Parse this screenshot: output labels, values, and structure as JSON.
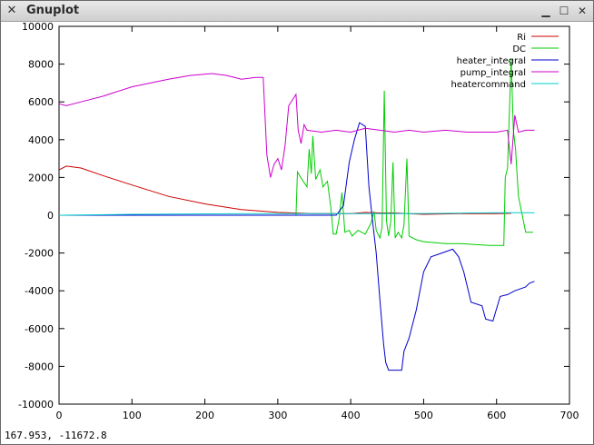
{
  "window": {
    "title": "Gnuplot",
    "close_glyph": "✕",
    "min_glyph": "▁",
    "max_glyph": "☐",
    "close2_glyph": "✕"
  },
  "status": {
    "coords": "167.953, -11672.8"
  },
  "colors": {
    "Ri": "#cc0000",
    "DC": "#00cc00",
    "heater_integral": "#0000cc",
    "pump_integral": "#cc00cc",
    "heatercommand": "#00cccc"
  },
  "chart_data": {
    "type": "line",
    "xlim": [
      0,
      700
    ],
    "ylim": [
      -10000,
      10000
    ],
    "xticks": [
      0,
      100,
      200,
      300,
      400,
      500,
      600,
      700
    ],
    "yticks": [
      -10000,
      -8000,
      -6000,
      -4000,
      -2000,
      0,
      2000,
      4000,
      6000,
      8000,
      10000
    ],
    "legend_position": "top-right",
    "series": [
      {
        "name": "Ri",
        "key": "Ri",
        "points": [
          [
            0,
            2400
          ],
          [
            10,
            2600
          ],
          [
            30,
            2500
          ],
          [
            60,
            2100
          ],
          [
            100,
            1600
          ],
          [
            150,
            1000
          ],
          [
            200,
            600
          ],
          [
            250,
            300
          ],
          [
            300,
            150
          ],
          [
            350,
            80
          ],
          [
            400,
            80
          ],
          [
            420,
            150
          ],
          [
            440,
            120
          ],
          [
            460,
            120
          ],
          [
            480,
            80
          ],
          [
            500,
            50
          ],
          [
            550,
            80
          ],
          [
            600,
            80
          ],
          [
            620,
            100
          ]
        ]
      },
      {
        "name": "DC",
        "key": "DC",
        "points": [
          [
            0,
            0
          ],
          [
            325,
            0
          ],
          [
            327,
            2300
          ],
          [
            333,
            1900
          ],
          [
            340,
            1500
          ],
          [
            343,
            3500
          ],
          [
            346,
            2200
          ],
          [
            348,
            4200
          ],
          [
            352,
            1900
          ],
          [
            358,
            2400
          ],
          [
            362,
            1500
          ],
          [
            368,
            1800
          ],
          [
            373,
            300
          ],
          [
            376,
            -1000
          ],
          [
            380,
            -1000
          ],
          [
            384,
            -200
          ],
          [
            388,
            1200
          ],
          [
            392,
            -900
          ],
          [
            398,
            -800
          ],
          [
            402,
            -1100
          ],
          [
            410,
            -800
          ],
          [
            420,
            -1000
          ],
          [
            428,
            -400
          ],
          [
            432,
            200
          ],
          [
            435,
            -800
          ],
          [
            440,
            -1200
          ],
          [
            443,
            -600
          ],
          [
            446,
            6600
          ],
          [
            449,
            -300
          ],
          [
            452,
            -1100
          ],
          [
            455,
            -300
          ],
          [
            458,
            2800
          ],
          [
            461,
            -1200
          ],
          [
            465,
            -900
          ],
          [
            470,
            -1200
          ],
          [
            473,
            -500
          ],
          [
            477,
            3000
          ],
          [
            480,
            -1100
          ],
          [
            490,
            -1300
          ],
          [
            500,
            -1400
          ],
          [
            530,
            -1500
          ],
          [
            550,
            -1500
          ],
          [
            570,
            -1550
          ],
          [
            590,
            -1600
          ],
          [
            610,
            -1600
          ],
          [
            612,
            2000
          ],
          [
            615,
            2500
          ],
          [
            620,
            8300
          ],
          [
            623,
            4500
          ],
          [
            626,
            3500
          ],
          [
            630,
            1000
          ],
          [
            640,
            -900
          ],
          [
            650,
            -900
          ]
        ]
      },
      {
        "name": "heater_integral",
        "key": "heater_integral",
        "points": [
          [
            0,
            0
          ],
          [
            380,
            0
          ],
          [
            390,
            500
          ],
          [
            398,
            2800
          ],
          [
            405,
            4000
          ],
          [
            412,
            4900
          ],
          [
            420,
            4700
          ],
          [
            425,
            1500
          ],
          [
            430,
            -300
          ],
          [
            435,
            -2000
          ],
          [
            440,
            -4500
          ],
          [
            445,
            -6800
          ],
          [
            448,
            -7800
          ],
          [
            452,
            -8200
          ],
          [
            460,
            -8200
          ],
          [
            470,
            -8200
          ],
          [
            473,
            -7200
          ],
          [
            480,
            -6500
          ],
          [
            490,
            -5000
          ],
          [
            500,
            -3000
          ],
          [
            510,
            -2200
          ],
          [
            525,
            -2000
          ],
          [
            540,
            -1800
          ],
          [
            548,
            -2200
          ],
          [
            555,
            -3000
          ],
          [
            565,
            -4600
          ],
          [
            580,
            -4800
          ],
          [
            585,
            -5500
          ],
          [
            595,
            -5600
          ],
          [
            605,
            -4300
          ],
          [
            615,
            -4200
          ],
          [
            625,
            -4000
          ],
          [
            640,
            -3800
          ],
          [
            645,
            -3600
          ],
          [
            652,
            -3500
          ]
        ]
      },
      {
        "name": "pump_integral",
        "key": "pump_integral",
        "points": [
          [
            0,
            5900
          ],
          [
            10,
            5800
          ],
          [
            30,
            6000
          ],
          [
            60,
            6300
          ],
          [
            100,
            6800
          ],
          [
            150,
            7200
          ],
          [
            180,
            7400
          ],
          [
            210,
            7500
          ],
          [
            230,
            7400
          ],
          [
            250,
            7200
          ],
          [
            270,
            7300
          ],
          [
            280,
            7300
          ],
          [
            285,
            3200
          ],
          [
            290,
            2000
          ],
          [
            295,
            2700
          ],
          [
            300,
            3000
          ],
          [
            305,
            2400
          ],
          [
            310,
            3700
          ],
          [
            315,
            5800
          ],
          [
            320,
            6100
          ],
          [
            325,
            6400
          ],
          [
            328,
            4500
          ],
          [
            332,
            3800
          ],
          [
            336,
            4800
          ],
          [
            340,
            4500
          ],
          [
            360,
            4400
          ],
          [
            380,
            4500
          ],
          [
            400,
            4400
          ],
          [
            420,
            4600
          ],
          [
            440,
            4500
          ],
          [
            460,
            4400
          ],
          [
            480,
            4500
          ],
          [
            500,
            4400
          ],
          [
            530,
            4500
          ],
          [
            560,
            4400
          ],
          [
            600,
            4400
          ],
          [
            615,
            4500
          ],
          [
            620,
            2700
          ],
          [
            625,
            5300
          ],
          [
            630,
            4400
          ],
          [
            640,
            4500
          ],
          [
            652,
            4500
          ]
        ]
      },
      {
        "name": "heatercommand",
        "key": "heatercommand",
        "points": [
          [
            0,
            0
          ],
          [
            100,
            50
          ],
          [
            200,
            70
          ],
          [
            300,
            80
          ],
          [
            400,
            80
          ],
          [
            450,
            80
          ],
          [
            500,
            90
          ],
          [
            550,
            110
          ],
          [
            600,
            130
          ],
          [
            652,
            130
          ]
        ]
      }
    ]
  }
}
